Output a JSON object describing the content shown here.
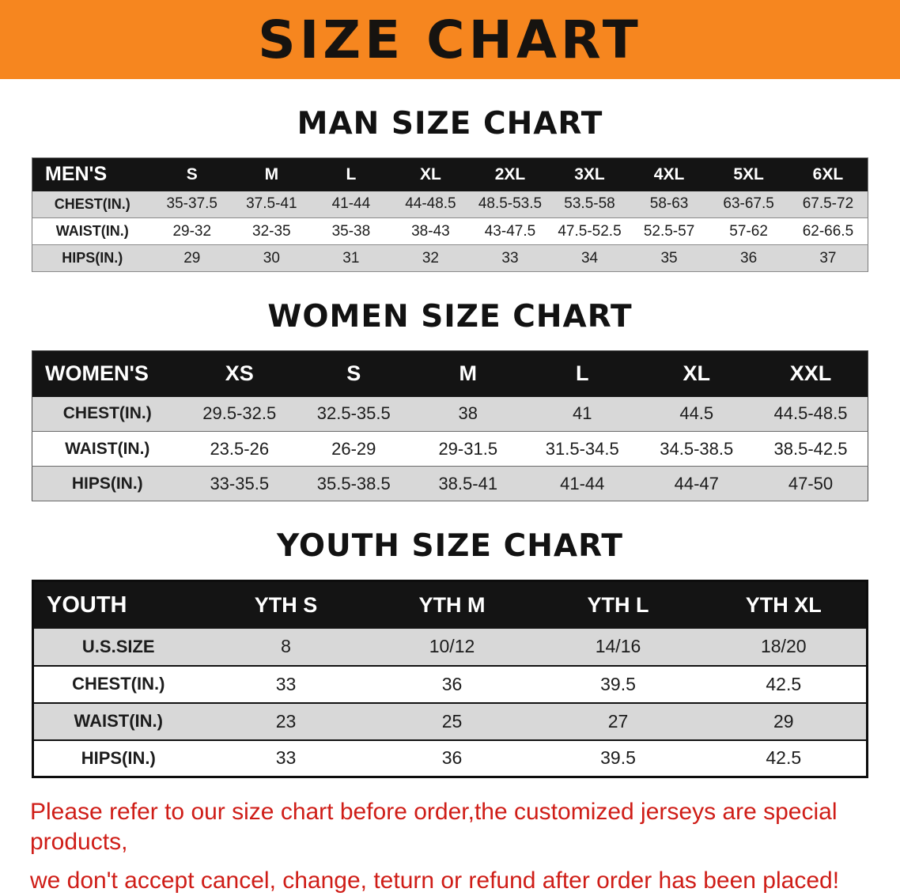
{
  "banner": {
    "title": "SIZE CHART"
  },
  "colors": {
    "banner_bg": "#f6861f",
    "table_header_bg": "#141414",
    "row_alt_gray": "#d8d8d8",
    "note_red": "#cf1d17"
  },
  "men": {
    "heading": "MAN SIZE CHART",
    "header": [
      "MEN'S",
      "S",
      "M",
      "L",
      "XL",
      "2XL",
      "3XL",
      "4XL",
      "5XL",
      "6XL"
    ],
    "rows": [
      {
        "label": "CHEST(IN.)",
        "values": [
          "35-37.5",
          "37.5-41",
          "41-44",
          "44-48.5",
          "48.5-53.5",
          "53.5-58",
          "58-63",
          "63-67.5",
          "67.5-72"
        ]
      },
      {
        "label": "WAIST(IN.)",
        "values": [
          "29-32",
          "32-35",
          "35-38",
          "38-43",
          "43-47.5",
          "47.5-52.5",
          "52.5-57",
          "57-62",
          "62-66.5"
        ]
      },
      {
        "label": "HIPS(IN.)",
        "values": [
          "29",
          "30",
          "31",
          "32",
          "33",
          "34",
          "35",
          "36",
          "37"
        ]
      }
    ]
  },
  "women": {
    "heading": "WOMEN SIZE CHART",
    "header": [
      "WOMEN'S",
      "XS",
      "S",
      "M",
      "L",
      "XL",
      "XXL"
    ],
    "rows": [
      {
        "label": "CHEST(IN.)",
        "values": [
          "29.5-32.5",
          "32.5-35.5",
          "38",
          "41",
          "44.5",
          "44.5-48.5"
        ]
      },
      {
        "label": "WAIST(IN.)",
        "values": [
          "23.5-26",
          "26-29",
          "29-31.5",
          "31.5-34.5",
          "34.5-38.5",
          "38.5-42.5"
        ]
      },
      {
        "label": "HIPS(IN.)",
        "values": [
          "33-35.5",
          "35.5-38.5",
          "38.5-41",
          "41-44",
          "44-47",
          "47-50"
        ]
      }
    ]
  },
  "youth": {
    "heading": "YOUTH SIZE CHART",
    "header": [
      "YOUTH",
      "YTH S",
      "YTH M",
      "YTH L",
      "YTH XL"
    ],
    "rows": [
      {
        "label": "U.S.SIZE",
        "values": [
          "8",
          "10/12",
          "14/16",
          "18/20"
        ]
      },
      {
        "label": "CHEST(IN.)",
        "values": [
          "33",
          "36",
          "39.5",
          "42.5"
        ]
      },
      {
        "label": "WAIST(IN.)",
        "values": [
          "23",
          "25",
          "27",
          "29"
        ]
      },
      {
        "label": "HIPS(IN.)",
        "values": [
          "33",
          "36",
          "39.5",
          "42.5"
        ]
      }
    ]
  },
  "footer": {
    "line1": "Please refer to our size chart before order,the customized jerseys are special products,",
    "line2": "we don't accept cancel, change, teturn or refund after order has been placed!"
  }
}
